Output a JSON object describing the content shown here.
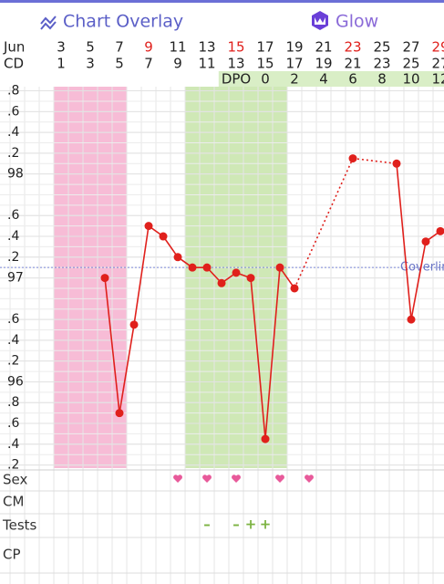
{
  "header": {
    "title": "Chart Overlay",
    "brand": "Glow"
  },
  "dates": {
    "month": "Jun",
    "days": [
      3,
      5,
      7,
      9,
      11,
      13,
      15,
      17,
      19,
      21,
      23,
      25,
      27,
      29
    ],
    "highlighted": [
      9,
      15,
      23,
      29
    ]
  },
  "cycle_days": {
    "label": "CD",
    "values": [
      1,
      3,
      5,
      7,
      9,
      11,
      13,
      15,
      17,
      19,
      21,
      23,
      25,
      27
    ]
  },
  "dpo": {
    "label": "DPO",
    "values": [
      0,
      2,
      4,
      6,
      8,
      10,
      12
    ],
    "days": [
      17,
      19,
      21,
      23,
      25,
      27,
      29
    ]
  },
  "chart_data": {
    "type": "line",
    "x": [
      6,
      7,
      8,
      9,
      10,
      11,
      12,
      13,
      14,
      15,
      16,
      17,
      18,
      19,
      23,
      26,
      27,
      28,
      29
    ],
    "series": [
      {
        "name": "Temperature",
        "color": "#e0201c",
        "values": [
          97.0,
          95.7,
          96.55,
          97.5,
          97.4,
          97.2,
          97.1,
          97.1,
          96.95,
          97.05,
          97.0,
          95.45,
          97.1,
          96.9,
          98.15,
          98.1,
          96.6,
          97.35,
          97.45
        ]
      }
    ],
    "xlim": [
      -1.19,
      29.25
    ],
    "ylim": [
      95.17,
      98.84
    ],
    "yticks": [
      {
        "value": 98.8,
        "label": ".8"
      },
      {
        "value": 98.6,
        "label": ".6"
      },
      {
        "value": 98.4,
        "label": ".4"
      },
      {
        "value": 98.2,
        "label": ".2"
      },
      98,
      {
        "value": 97.6,
        "label": ".6"
      },
      {
        "value": 97.4,
        "label": ".4"
      },
      {
        "value": 97.2,
        "label": ".2"
      },
      97,
      {
        "value": 96.6,
        "label": ".6"
      },
      {
        "value": 96.4,
        "label": ".4"
      },
      {
        "value": 96.2,
        "label": ".2"
      },
      96,
      {
        "value": 95.8,
        "label": ".8"
      },
      {
        "value": 95.6,
        "label": ".6"
      },
      {
        "value": 95.4,
        "label": ".4"
      },
      {
        "value": 95.2,
        "label": ".2"
      }
    ],
    "coverline": {
      "value": 97.1,
      "label": "Coverline"
    },
    "period": [
      3,
      7
    ],
    "fertile": [
      12,
      18
    ]
  },
  "rows": [
    {
      "label": "Sex",
      "hearts": [
        11,
        13,
        15,
        18,
        20
      ]
    },
    {
      "label": "CM"
    },
    {
      "label": "Tests",
      "marks": [
        {
          "day": 13,
          "label": "–"
        },
        {
          "day": 15,
          "label": "–"
        },
        {
          "day": 16,
          "label": "+"
        },
        {
          "day": 17,
          "label": "+"
        }
      ]
    },
    {
      "label": "CP"
    }
  ]
}
